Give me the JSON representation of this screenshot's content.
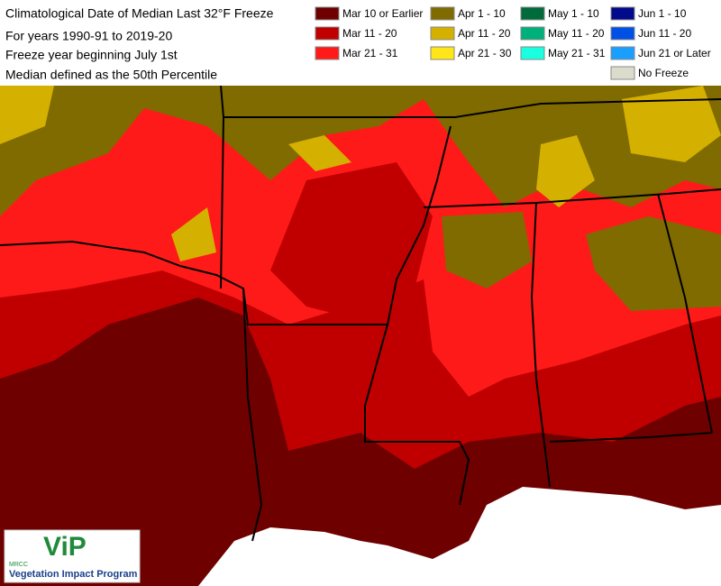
{
  "header": {
    "lines": [
      "Climatological Date of Median Last 32°F Freeze",
      "For years 1990-91 to 2019-20",
      "Freeze year beginning July 1st",
      "Median defined as the 50th Percentile"
    ]
  },
  "legend": [
    {
      "label": "Mar 10 or Earlier",
      "color": "#6e0000"
    },
    {
      "label": "Mar 11 - 20",
      "color": "#c00000"
    },
    {
      "label": "Mar 21 - 31",
      "color": "#ff1a1a"
    },
    {
      "label": "Apr 1 - 10",
      "color": "#7f6b00"
    },
    {
      "label": "Apr 11 - 20",
      "color": "#d4b000"
    },
    {
      "label": "Apr 21 - 30",
      "color": "#ffe619"
    },
    {
      "label": "May 1 - 10",
      "color": "#006a3a"
    },
    {
      "label": "May 11 - 20",
      "color": "#00b07a"
    },
    {
      "label": "May 21 - 31",
      "color": "#1affe0"
    },
    {
      "label": "Jun 1 - 10",
      "color": "#000a8a"
    },
    {
      "label": "Jun 11 - 20",
      "color": "#0050e6"
    },
    {
      "label": "Jun 21 or Later",
      "color": "#1a9fff"
    },
    {
      "label": "No Freeze",
      "color": "#dcdccc"
    }
  ],
  "logo": {
    "mark": "ViP",
    "org": "MRCC",
    "name": "Vegetation Impact Program"
  }
}
